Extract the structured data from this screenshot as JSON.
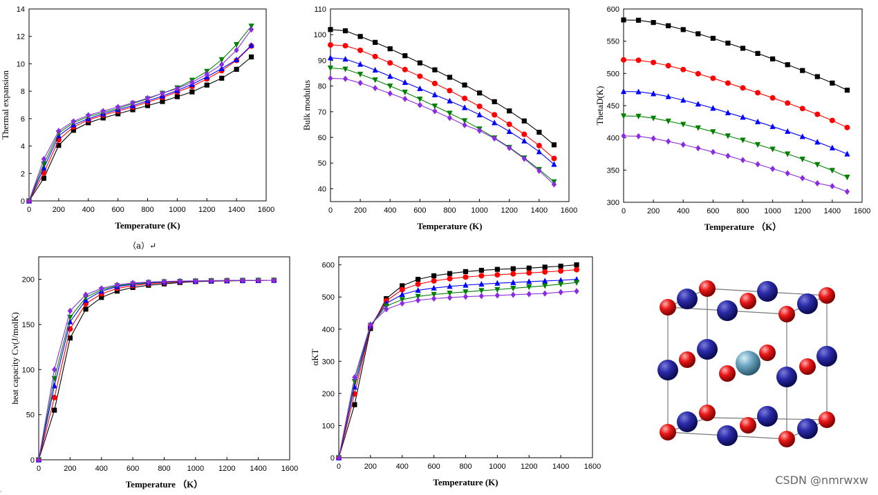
{
  "caption": "（a）↵",
  "watermark": "CSDN @nmrwxw",
  "dot": "·",
  "crystal_label": "",
  "chart_data": [
    {
      "type": "line",
      "xlabel": "Temperature (K)",
      "ylabel": "Thermal expansion",
      "xlim": [
        0,
        1600
      ],
      "ylim": [
        0,
        14
      ],
      "xticks": [
        0,
        200,
        400,
        600,
        800,
        1000,
        1200,
        1400,
        1600
      ],
      "yticks": [
        0,
        2,
        4,
        6,
        8,
        10,
        12,
        14
      ],
      "x": [
        0,
        100,
        200,
        300,
        400,
        500,
        600,
        700,
        800,
        900,
        1000,
        1100,
        1200,
        1300,
        1400,
        1500
      ],
      "series": [
        {
          "color": "#000000",
          "marker": "square",
          "values": [
            0,
            1.65,
            4.05,
            5.15,
            5.7,
            6.05,
            6.35,
            6.65,
            6.95,
            7.25,
            7.6,
            7.95,
            8.45,
            8.95,
            9.6,
            10.5
          ]
        },
        {
          "color": "#ff0000",
          "marker": "circle",
          "values": [
            0,
            2.05,
            4.45,
            5.4,
            5.9,
            6.25,
            6.55,
            6.85,
            7.2,
            7.55,
            7.95,
            8.35,
            8.9,
            9.5,
            10.25,
            11.3
          ]
        },
        {
          "color": "#0000ff",
          "marker": "triangle-up",
          "values": [
            0,
            2.4,
            4.75,
            5.55,
            6.0,
            6.35,
            6.65,
            6.95,
            7.3,
            7.65,
            8.05,
            8.5,
            9.05,
            9.65,
            10.3,
            11.35
          ]
        },
        {
          "color": "#008000",
          "marker": "triangle-down",
          "values": [
            0,
            2.7,
            4.95,
            5.7,
            6.15,
            6.45,
            6.75,
            7.1,
            7.45,
            7.85,
            8.25,
            8.8,
            9.45,
            10.3,
            11.4,
            12.75
          ]
        },
        {
          "color": "#8a2be2",
          "marker": "diamond",
          "values": [
            0,
            3.05,
            5.1,
            5.8,
            6.25,
            6.55,
            6.85,
            7.15,
            7.5,
            7.85,
            8.2,
            8.65,
            9.25,
            9.95,
            11.0,
            12.5
          ]
        }
      ]
    },
    {
      "type": "line",
      "xlabel": "Temperature (K)",
      "ylabel": "Bulk modulus",
      "xlim": [
        0,
        1600
      ],
      "ylim": [
        35,
        110
      ],
      "xticks": [
        0,
        200,
        400,
        600,
        800,
        1000,
        1200,
        1400,
        1600
      ],
      "yticks": [
        40,
        50,
        60,
        70,
        80,
        90,
        100,
        110
      ],
      "x": [
        0,
        100,
        200,
        300,
        400,
        500,
        600,
        700,
        800,
        900,
        1000,
        1100,
        1200,
        1300,
        1400,
        1500
      ],
      "series": [
        {
          "color": "#000000",
          "marker": "square",
          "values": [
            102,
            101.5,
            99.3,
            97,
            94.5,
            91.8,
            89,
            86.3,
            83.4,
            80.4,
            77.3,
            73.9,
            70.3,
            66.4,
            62,
            57.1
          ]
        },
        {
          "color": "#ff0000",
          "marker": "circle",
          "values": [
            96,
            95.7,
            93.9,
            91.5,
            89,
            86.4,
            83.8,
            81,
            78.2,
            75.2,
            72.1,
            68.8,
            65.1,
            61.2,
            56.8,
            51.8
          ]
        },
        {
          "color": "#0000ff",
          "marker": "triangle-up",
          "values": [
            91,
            90.5,
            88.5,
            86.2,
            83.8,
            81.4,
            79,
            76.6,
            74.2,
            71.6,
            68.8,
            65.7,
            62.3,
            58.6,
            54.4,
            49.5
          ]
        },
        {
          "color": "#008000",
          "marker": "triangle-down",
          "values": [
            87,
            86.6,
            84.6,
            82.4,
            80,
            77.6,
            74.9,
            72.2,
            69.4,
            66.5,
            63.3,
            59.8,
            56.1,
            52,
            47.5,
            42.7
          ]
        },
        {
          "color": "#8a2be2",
          "marker": "diamond",
          "values": [
            83,
            82.8,
            81.2,
            79.2,
            77.1,
            75,
            72.6,
            70.2,
            67.6,
            64.8,
            62.6,
            59.6,
            55.9,
            51.7,
            47,
            41.7
          ]
        }
      ]
    },
    {
      "type": "line",
      "xlabel": "Temperature （K）",
      "ylabel": "ThetaD(K)",
      "xlim": [
        0,
        1600
      ],
      "ylim": [
        300,
        600
      ],
      "xticks": [
        0,
        200,
        400,
        600,
        800,
        1000,
        1200,
        1400,
        1600
      ],
      "yticks": [
        300,
        350,
        400,
        450,
        500,
        550,
        600
      ],
      "x": [
        0,
        100,
        200,
        300,
        400,
        500,
        600,
        700,
        800,
        900,
        1000,
        1100,
        1200,
        1300,
        1400,
        1500
      ],
      "series": [
        {
          "color": "#000000",
          "marker": "square",
          "values": [
            583,
            582.5,
            579,
            574,
            568,
            561.5,
            554.5,
            547,
            539,
            531,
            522.5,
            513.5,
            504.5,
            495,
            485,
            474
          ]
        },
        {
          "color": "#ff0000",
          "marker": "circle",
          "values": [
            521,
            520.5,
            517,
            512,
            506,
            499.5,
            492.5,
            485,
            477.5,
            470,
            462,
            454,
            445.5,
            436.5,
            427,
            416
          ]
        },
        {
          "color": "#0000ff",
          "marker": "triangle-up",
          "values": [
            472,
            471.5,
            468.5,
            464,
            458.5,
            452.5,
            446,
            439,
            432,
            425,
            417.5,
            410,
            402,
            393.5,
            384.5,
            375
          ]
        },
        {
          "color": "#008000",
          "marker": "triangle-down",
          "values": [
            434,
            433.5,
            430.5,
            426,
            421,
            415.5,
            409.5,
            403,
            396.5,
            389.5,
            382.5,
            375,
            367,
            358.5,
            349.5,
            339
          ]
        },
        {
          "color": "#8a2be2",
          "marker": "diamond",
          "values": [
            403,
            402.5,
            399,
            394.5,
            389.5,
            384,
            378,
            372,
            365.5,
            359,
            352,
            345,
            337.5,
            329.5,
            325,
            316.5
          ]
        }
      ]
    },
    {
      "type": "line",
      "xlabel": "Temperature （K）",
      "ylabel": "heat capacity Cv(J/molK)",
      "xlim": [
        0,
        1600
      ],
      "ylim": [
        0,
        225
      ],
      "xticks": [
        0,
        200,
        400,
        600,
        800,
        1000,
        1200,
        1400,
        1600
      ],
      "yticks": [
        0,
        50,
        100,
        150,
        200
      ],
      "x": [
        0,
        100,
        200,
        300,
        400,
        500,
        600,
        700,
        800,
        900,
        1000,
        1100,
        1200,
        1300,
        1400,
        1500
      ],
      "series": [
        {
          "color": "#000000",
          "marker": "square",
          "values": [
            0,
            55,
            135,
            167,
            180,
            187,
            191,
            193.5,
            195,
            196.5,
            197.5,
            198,
            198.3,
            198.6,
            198.8,
            199
          ]
        },
        {
          "color": "#ff0000",
          "marker": "circle",
          "values": [
            0,
            69,
            145,
            173,
            184,
            190,
            193,
            195,
            196.3,
            197.2,
            197.8,
            198.2,
            198.5,
            198.7,
            198.9,
            199
          ]
        },
        {
          "color": "#0000ff",
          "marker": "triangle-up",
          "values": [
            0,
            82,
            153,
            177,
            187,
            192,
            194.5,
            196,
            197,
            197.6,
            198,
            198.4,
            198.6,
            198.8,
            198.9,
            199
          ]
        },
        {
          "color": "#008000",
          "marker": "triangle-down",
          "values": [
            0,
            90,
            158,
            180,
            188.5,
            193,
            195,
            196.5,
            197.3,
            197.8,
            198.2,
            198.5,
            198.7,
            198.9,
            199,
            199
          ]
        },
        {
          "color": "#8a2be2",
          "marker": "diamond",
          "values": [
            0,
            100,
            165,
            183,
            190,
            194,
            196,
            197,
            197.7,
            198.1,
            198.4,
            198.6,
            198.8,
            198.9,
            199,
            199
          ]
        }
      ]
    },
    {
      "type": "line",
      "xlabel": "Temperature (K)",
      "ylabel": "αKT",
      "xlim": [
        0,
        1600
      ],
      "ylim": [
        0,
        625
      ],
      "xticks": [
        0,
        200,
        400,
        600,
        800,
        1000,
        1200,
        1400,
        1600
      ],
      "yticks": [
        0,
        100,
        200,
        300,
        400,
        500,
        600
      ],
      "x": [
        0,
        100,
        200,
        300,
        400,
        500,
        600,
        700,
        800,
        900,
        1000,
        1100,
        1200,
        1300,
        1400,
        1500
      ],
      "series": [
        {
          "color": "#000000",
          "marker": "square",
          "values": [
            0,
            165,
            402,
            495,
            535,
            555,
            566,
            573,
            579,
            583,
            586,
            588,
            590,
            593,
            596,
            600
          ]
        },
        {
          "color": "#ff0000",
          "marker": "circle",
          "values": [
            0,
            198,
            408,
            488,
            523,
            540,
            550,
            557,
            562,
            566,
            569,
            572,
            575,
            578,
            581,
            585
          ]
        },
        {
          "color": "#0000ff",
          "marker": "triangle-up",
          "values": [
            0,
            220,
            410,
            480,
            508,
            521,
            528,
            533,
            537,
            540,
            543,
            545,
            548,
            550,
            552,
            555
          ]
        },
        {
          "color": "#008000",
          "marker": "triangle-down",
          "values": [
            0,
            237,
            412,
            472,
            492,
            502,
            508,
            512,
            516,
            520,
            523,
            527,
            531,
            535,
            540,
            545
          ]
        },
        {
          "color": "#8a2be2",
          "marker": "diamond",
          "values": [
            0,
            250,
            414,
            462,
            480,
            490,
            495,
            498,
            501,
            503,
            505,
            507,
            509,
            511,
            515,
            518
          ]
        }
      ]
    }
  ]
}
